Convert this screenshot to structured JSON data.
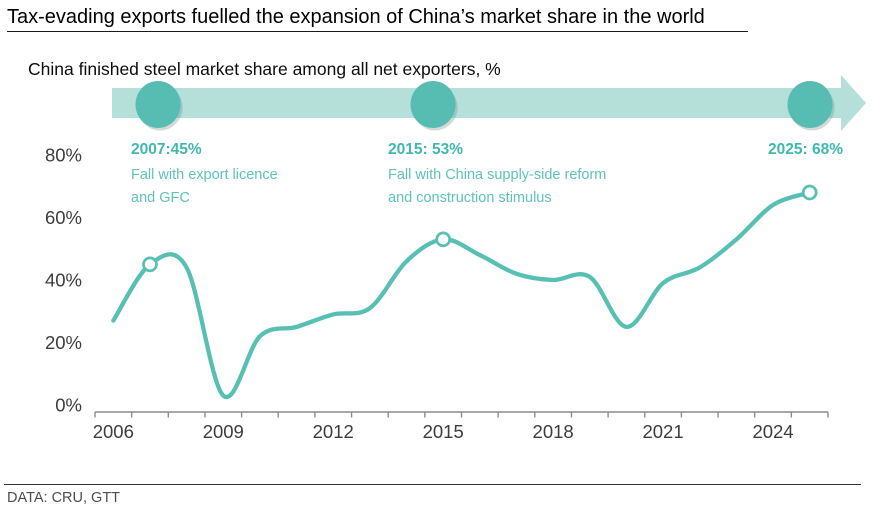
{
  "page": {
    "title": "Tax-evading exports fuelled the expansion of China’s market share in the world",
    "subtitle": "China finished steel market share among all net exporters, %",
    "footer": "DATA: CRU, GTT"
  },
  "timeline": {
    "band_color": "#b5dfd9",
    "circle_color": "#57bcb1",
    "events": [
      {
        "label": "2007:45%",
        "line1": "Fall with export licence",
        "line2": "and GFC",
        "x": 158
      },
      {
        "label": "2015: 53%",
        "line1": "Fall with China supply-side reform",
        "line2": "and construction stimulus",
        "x": 433
      },
      {
        "label": "2025: 68%",
        "line1": "",
        "line2": "",
        "x": 810
      }
    ]
  },
  "chart_data": {
    "type": "line",
    "title": "China finished steel market share among all net exporters, %",
    "x": [
      2006,
      2007,
      2008,
      2009,
      2010,
      2011,
      2012,
      2013,
      2014,
      2015,
      2016,
      2017,
      2018,
      2019,
      2020,
      2021,
      2022,
      2023,
      2024,
      2025
    ],
    "values": [
      27,
      45,
      44,
      3,
      22,
      25,
      29,
      31,
      46,
      53,
      48,
      42,
      40,
      41,
      25,
      39,
      44,
      53,
      64,
      68
    ],
    "markers": [
      {
        "year": 2007,
        "value": 45
      },
      {
        "year": 2015,
        "value": 53
      },
      {
        "year": 2025,
        "value": 68
      }
    ],
    "ylim": [
      0,
      80
    ],
    "yticks": [
      0,
      20,
      40,
      60,
      80
    ],
    "ytick_suffix": "%",
    "xtick_years": [
      2006,
      2009,
      2012,
      2015,
      2018,
      2021,
      2024
    ],
    "grid": false,
    "legend": null,
    "line_color": "#58bfb3",
    "axis_color": "#8c8c8c",
    "label_color": "#3d3d3d"
  }
}
